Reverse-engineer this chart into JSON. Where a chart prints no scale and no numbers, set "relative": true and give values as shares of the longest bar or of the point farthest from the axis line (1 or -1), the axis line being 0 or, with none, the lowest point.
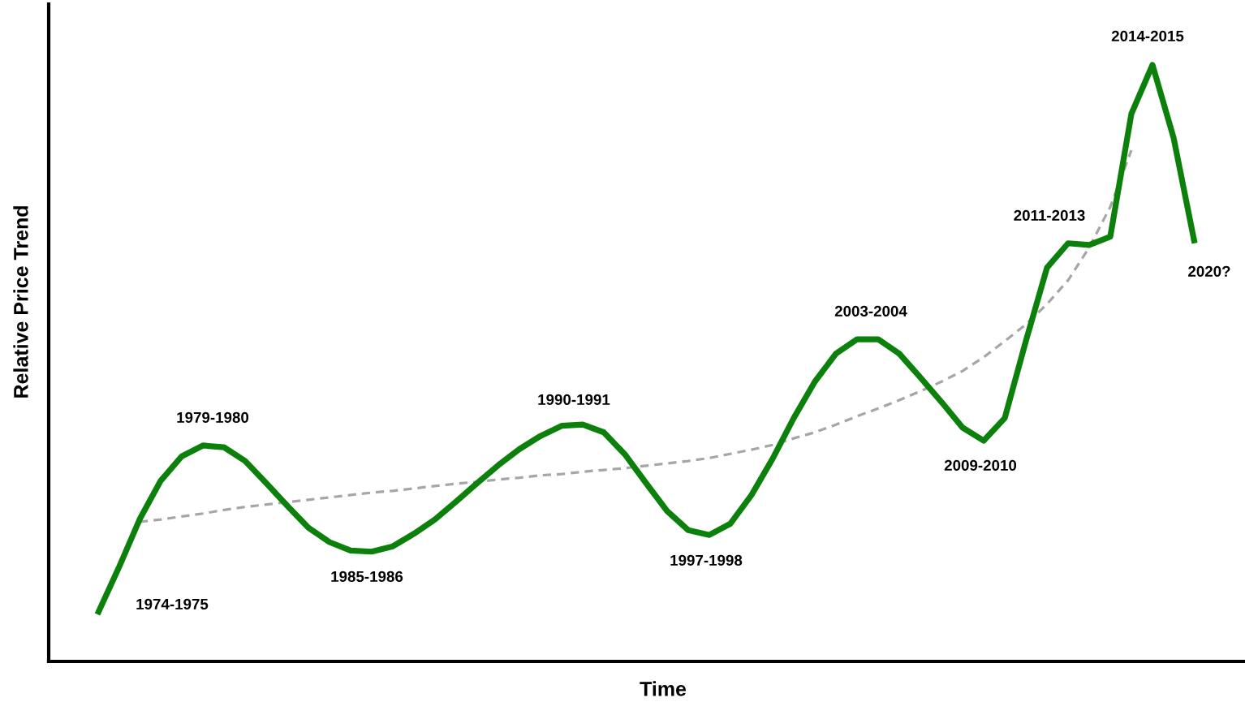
{
  "chart_data": {
    "type": "line",
    "relative": true,
    "xlabel": "Time",
    "ylabel": "Relative Price Trend",
    "categories": [
      null,
      null,
      null,
      null,
      null,
      null,
      null,
      null,
      null,
      null,
      null,
      null,
      null,
      null,
      null,
      null,
      null,
      null,
      null,
      null,
      null,
      null,
      null,
      null,
      null,
      null,
      null,
      null,
      null,
      null,
      null,
      null,
      null,
      null,
      null,
      null,
      null,
      null,
      null,
      null,
      null,
      null,
      null,
      null,
      null,
      null,
      null,
      null,
      null,
      null,
      null,
      null,
      null
    ],
    "series": [
      {
        "color": "#0b800b",
        "line_style": "solid",
        "values": [
          0.079,
          0.156,
          0.238,
          0.303,
          0.344,
          0.362,
          0.359,
          0.336,
          0.299,
          0.261,
          0.224,
          0.2,
          0.186,
          0.184,
          0.193,
          0.214,
          0.238,
          0.268,
          0.299,
          0.329,
          0.356,
          0.378,
          0.395,
          0.397,
          0.384,
          0.347,
          0.299,
          0.252,
          0.22,
          0.212,
          0.231,
          0.279,
          0.34,
          0.408,
          0.469,
          0.516,
          0.54,
          0.54,
          0.516,
          0.476,
          0.435,
          0.392,
          0.37,
          0.408,
          0.537,
          0.66,
          0.701,
          0.698,
          0.712,
          0.918,
          1.0,
          0.878,
          0.701
        ]
      },
      {
        "color": "#a6a6a6",
        "line_style": "dashed",
        "values": [
          null,
          null,
          0.234,
          0.238,
          0.243,
          0.248,
          0.254,
          0.259,
          0.263,
          0.267,
          0.271,
          0.275,
          0.279,
          0.283,
          0.286,
          0.29,
          0.294,
          0.298,
          0.301,
          0.305,
          0.308,
          0.312,
          0.314,
          0.318,
          0.321,
          0.324,
          0.328,
          0.332,
          0.336,
          0.341,
          0.348,
          0.355,
          0.363,
          0.374,
          0.384,
          0.397,
          0.411,
          0.424,
          0.438,
          0.453,
          0.469,
          0.487,
          0.51,
          0.537,
          0.565,
          0.599,
          0.639,
          0.694,
          0.762,
          0.857,
          null,
          null,
          null
        ]
      }
    ],
    "annotations": [
      "1974-1975",
      "1979-1980",
      "1985-1986",
      "1990-1991",
      "1997-1998",
      "2003-2004",
      "2009-2010",
      "2011-2013",
      "2014-2015",
      "2020?"
    ]
  }
}
